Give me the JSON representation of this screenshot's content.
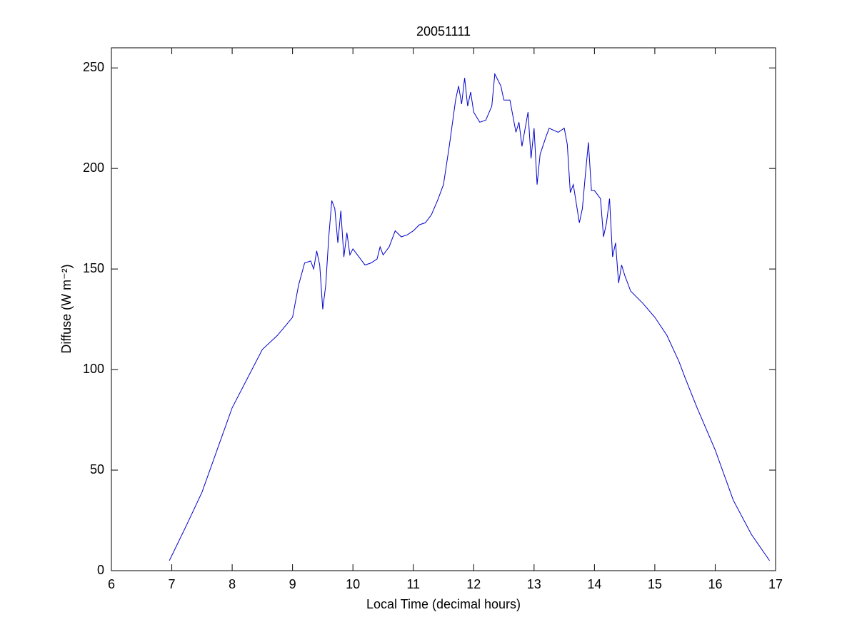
{
  "chart_data": {
    "type": "line",
    "title": "20051111",
    "xlabel": "Local Time (decimal hours)",
    "ylabel": "Diffuse (W m⁻²)",
    "xlim": [
      6,
      17
    ],
    "xticks": [
      6,
      7,
      8,
      9,
      10,
      11,
      12,
      13,
      14,
      15,
      16,
      17
    ],
    "ylim": [
      0,
      260
    ],
    "yticks": [
      0,
      50,
      100,
      150,
      200,
      250
    ],
    "grid": false,
    "series": [
      {
        "color": "#0000cc",
        "x": [
          6.96,
          7.25,
          7.5,
          7.75,
          8.0,
          8.5,
          8.75,
          9.0,
          9.1,
          9.2,
          9.3,
          9.35,
          9.4,
          9.45,
          9.5,
          9.55,
          9.6,
          9.65,
          9.7,
          9.75,
          9.8,
          9.85,
          9.9,
          9.95,
          10.0,
          10.1,
          10.2,
          10.3,
          10.4,
          10.45,
          10.5,
          10.6,
          10.7,
          10.8,
          10.9,
          11.0,
          11.1,
          11.2,
          11.3,
          11.4,
          11.5,
          11.6,
          11.7,
          11.75,
          11.8,
          11.85,
          11.9,
          11.95,
          12.0,
          12.1,
          12.2,
          12.3,
          12.35,
          12.45,
          12.5,
          12.6,
          12.7,
          12.75,
          12.8,
          12.9,
          12.95,
          13.0,
          13.05,
          13.1,
          13.2,
          13.25,
          13.4,
          13.5,
          13.55,
          13.6,
          13.65,
          13.75,
          13.8,
          13.85,
          13.9,
          13.95,
          14.0,
          14.1,
          14.15,
          14.2,
          14.25,
          14.3,
          14.35,
          14.4,
          14.45,
          14.5,
          14.6,
          14.8,
          15.0,
          15.2,
          15.4,
          15.5,
          15.7,
          16.0,
          16.3,
          16.6,
          16.9
        ],
        "values": [
          5,
          23,
          39,
          60,
          81,
          110,
          117,
          126,
          142,
          153,
          154,
          150,
          159,
          152,
          130,
          142,
          166,
          184,
          180,
          163,
          179,
          156,
          168,
          157,
          160,
          156,
          152,
          153,
          155,
          161,
          157,
          161,
          169,
          166,
          167,
          169,
          172,
          173,
          177,
          184,
          192,
          212,
          234,
          241,
          232,
          245,
          231,
          238,
          228,
          223,
          224,
          231,
          247,
          241,
          234,
          234,
          218,
          223,
          211,
          228,
          205,
          220,
          192,
          207,
          216,
          220,
          218,
          220,
          212,
          188,
          192,
          173,
          180,
          197,
          213,
          189,
          189,
          185,
          166,
          173,
          185,
          156,
          163,
          143,
          152,
          147,
          139,
          133,
          126,
          117,
          104,
          96,
          81,
          60,
          35,
          18,
          5
        ]
      }
    ]
  }
}
